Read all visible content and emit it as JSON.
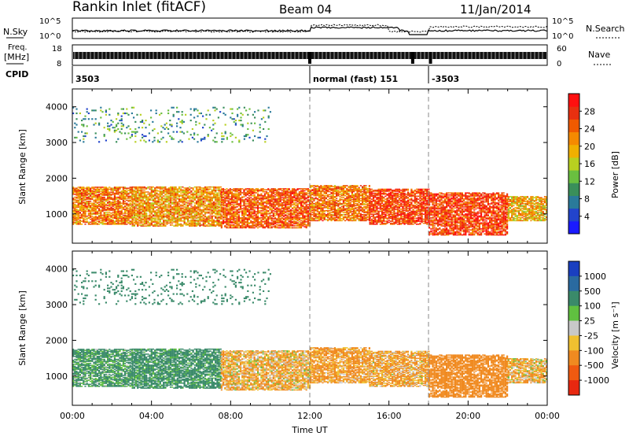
{
  "header": {
    "station": "Rankin Inlet (fitACF)",
    "beam": "Beam 04",
    "date": "11/Jan/2014"
  },
  "strip": {
    "nsky_label": "N.Sky",
    "nsearch_label": "N.Search",
    "noise_ticks": [
      "10^5",
      "10^0"
    ],
    "freq_label_1": "Freq.",
    "freq_label_2": "[MHz]",
    "freq_ticks": [
      "18",
      "8"
    ],
    "nave_label": "Nave",
    "nave_ticks": [
      "60",
      "0"
    ],
    "cpid_label": "CPID"
  },
  "cpid_segments": [
    {
      "start_hour": 0.0,
      "end_hour": 12.0,
      "label": "3503"
    },
    {
      "start_hour": 12.0,
      "end_hour": 18.0,
      "label": "normal (fast) 151"
    },
    {
      "start_hour": 18.0,
      "end_hour": 24.0,
      "label": "-3503"
    }
  ],
  "chart_data": [
    {
      "type": "heatmap",
      "name": "power",
      "ylabel": "Slant Range [km]",
      "xlabel": "",
      "xlim": [
        0,
        24
      ],
      "ylim": [
        180,
        4500
      ],
      "yticks": [
        "1000",
        "2000",
        "3000",
        "4000"
      ],
      "colorbar": {
        "label": "Power [dB]",
        "ticks": [
          "4",
          "8",
          "12",
          "16",
          "20",
          "24",
          "28"
        ],
        "colors": [
          "#1a1aff",
          "#2244cc",
          "#2a7a9a",
          "#3a8f5a",
          "#6abf40",
          "#b8d020",
          "#f0b000",
          "#f58a00",
          "#f05a00",
          "#e83010",
          "#ff1010"
        ]
      }
    },
    {
      "type": "heatmap",
      "name": "velocity",
      "ylabel": "Slant Range [km]",
      "xlabel": "Time UT",
      "xlim": [
        0,
        24
      ],
      "ylim": [
        180,
        4500
      ],
      "yticks": [
        "1000",
        "2000",
        "3000",
        "4000"
      ],
      "xticks": [
        "00:00",
        "04:00",
        "08:00",
        "12:00",
        "16:00",
        "20:00",
        "00:00"
      ],
      "colorbar": {
        "label": "Velocity [m s⁻¹]",
        "ticks": [
          "1000",
          "500",
          "100",
          "25",
          "-25",
          "-100",
          "-500",
          "-1000"
        ],
        "colors": [
          "#1a3fc0",
          "#2a6aa0",
          "#3a8a6a",
          "#60c040",
          "#c8c8c8",
          "#f0c030",
          "#f08a20",
          "#f05a10",
          "#e82810"
        ]
      }
    }
  ],
  "echo_bands": [
    {
      "start_hour": 0.0,
      "end_hour": 3.0,
      "low_km": 700,
      "high_km": 1750,
      "power_db": 24,
      "velocity": 150
    },
    {
      "start_hour": 3.0,
      "end_hour": 7.5,
      "low_km": 650,
      "high_km": 1750,
      "power_db": 22,
      "velocity": 200
    },
    {
      "start_hour": 7.5,
      "end_hour": 12.0,
      "low_km": 600,
      "high_km": 1700,
      "power_db": 26,
      "velocity": -100
    },
    {
      "start_hour": 12.0,
      "end_hour": 15.0,
      "low_km": 800,
      "high_km": 1800,
      "power_db": 24,
      "velocity": -150
    },
    {
      "start_hour": 15.0,
      "end_hour": 18.0,
      "low_km": 700,
      "high_km": 1700,
      "power_db": 28,
      "velocity": -120
    },
    {
      "start_hour": 18.0,
      "end_hour": 22.0,
      "low_km": 400,
      "high_km": 1600,
      "power_db": 28,
      "velocity": -250
    },
    {
      "start_hour": 22.0,
      "end_hour": 24.0,
      "low_km": 800,
      "high_km": 1500,
      "power_db": 20,
      "velocity": -100
    },
    {
      "start_hour": 0.0,
      "end_hour": 10.0,
      "low_km": 3000,
      "high_km": 4000,
      "power_db": 10,
      "velocity": 300
    }
  ]
}
